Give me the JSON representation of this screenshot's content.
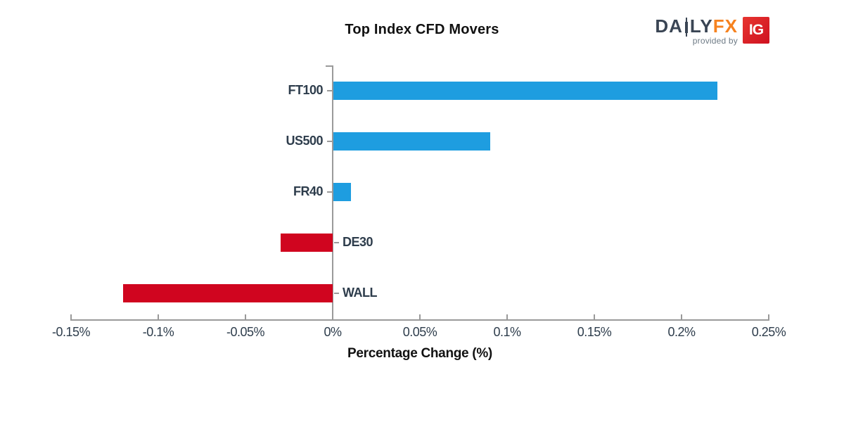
{
  "title": "Top Index CFD Movers",
  "logo": {
    "daily_left": "DA",
    "daily_right": "LY",
    "fx": "FX",
    "provided_by": "provided by",
    "ig": "IG"
  },
  "colors": {
    "positive_bar": "#1e9de0",
    "negative_bar": "#d0051f",
    "axis": "#9a9a9a",
    "tick_label": "#2e3d4c",
    "category_label": "#2e3d4c",
    "title": "#111111",
    "logo_daily": "#3a4554",
    "logo_fx": "#f6821f",
    "logo_provided": "#6d7a85",
    "logo_ig_bg": "#dd1d21"
  },
  "chart_data": {
    "type": "bar",
    "orientation": "horizontal",
    "title": "Top Index CFD Movers",
    "xlabel": "Percentage Change (%)",
    "ylabel": "",
    "categories": [
      "FT100",
      "US500",
      "FR40",
      "DE30",
      "WALL"
    ],
    "values": [
      0.22,
      0.09,
      0.01,
      -0.03,
      -0.12
    ],
    "bar_colors": [
      "#1e9de0",
      "#1e9de0",
      "#1e9de0",
      "#d0051f",
      "#d0051f"
    ],
    "xlim": [
      -0.15,
      0.25
    ],
    "x_tick_values": [
      -0.15,
      -0.1,
      -0.05,
      0,
      0.05,
      0.1,
      0.15,
      0.2,
      0.25
    ],
    "x_ticks": [
      "-0.15%",
      "-0.1%",
      "-0.05%",
      "0%",
      "0.05%",
      "0.1%",
      "0.15%",
      "0.2%",
      "0.25%"
    ],
    "grid": false,
    "legend": false
  }
}
